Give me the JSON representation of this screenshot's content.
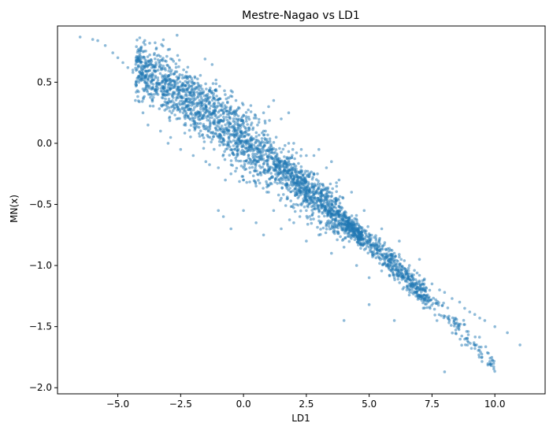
{
  "chart_data": {
    "type": "scatter",
    "title": "Mestre-Nagao vs LD1",
    "xlabel": "LD1",
    "ylabel": "MN(x)",
    "xlim": [
      -7.4,
      12.0
    ],
    "ylim": [
      -2.05,
      0.96
    ],
    "x_ticks": [
      -5.0,
      -2.5,
      0.0,
      2.5,
      5.0,
      7.5,
      10.0
    ],
    "x_tick_labels": [
      "−5.0",
      "−2.5",
      "0.0",
      "2.5",
      "5.0",
      "7.5",
      "10.0"
    ],
    "y_ticks": [
      0.5,
      0.0,
      -0.5,
      -1.0,
      -1.5,
      -2.0
    ],
    "y_tick_labels": [
      "0.5",
      "0.0",
      "−0.5",
      "−1.0",
      "−1.5",
      "−2.0"
    ],
    "grid": false,
    "marker_color": "#1f77b4",
    "marker_alpha": 0.5,
    "series": [
      {
        "points": [
          [
            -6.5,
            0.87
          ],
          [
            -6.0,
            0.85
          ],
          [
            -5.8,
            0.84
          ],
          [
            -5.5,
            0.8
          ],
          [
            -5.2,
            0.74
          ],
          [
            -5.0,
            0.7
          ],
          [
            -4.8,
            0.66
          ],
          [
            -4.6,
            0.62
          ],
          [
            -4.4,
            0.58
          ],
          [
            -4.2,
            0.54
          ],
          [
            -4.0,
            0.52
          ],
          [
            -3.8,
            0.48
          ],
          [
            -3.6,
            0.45
          ],
          [
            -3.4,
            0.4
          ],
          [
            -3.2,
            0.37
          ],
          [
            -3.0,
            0.33
          ],
          [
            -2.8,
            0.31
          ],
          [
            -2.6,
            0.28
          ],
          [
            -2.4,
            0.25
          ],
          [
            -2.2,
            0.22
          ],
          [
            -2.0,
            0.2
          ],
          [
            -1.8,
            0.16
          ],
          [
            -1.6,
            0.14
          ],
          [
            -1.4,
            0.1
          ],
          [
            -1.2,
            0.08
          ],
          [
            -1.0,
            0.05
          ],
          [
            -0.8,
            0.03
          ],
          [
            -0.6,
            0.0
          ],
          [
            -0.4,
            -0.02
          ],
          [
            -0.2,
            -0.05
          ],
          [
            0.0,
            -0.07
          ],
          [
            0.2,
            -0.1
          ],
          [
            0.4,
            -0.12
          ],
          [
            0.6,
            -0.15
          ],
          [
            0.8,
            -0.17
          ],
          [
            1.0,
            -0.2
          ],
          [
            1.2,
            -0.22
          ],
          [
            1.4,
            -0.25
          ],
          [
            1.6,
            -0.27
          ],
          [
            1.8,
            -0.3
          ],
          [
            2.0,
            -0.32
          ],
          [
            2.2,
            -0.35
          ],
          [
            2.4,
            -0.37
          ],
          [
            2.6,
            -0.4
          ],
          [
            2.8,
            -0.42
          ],
          [
            3.0,
            -0.45
          ],
          [
            3.2,
            -0.47
          ],
          [
            3.4,
            -0.5
          ],
          [
            3.6,
            -0.52
          ],
          [
            3.8,
            -0.55
          ],
          [
            4.0,
            -0.58
          ],
          [
            4.2,
            -0.61
          ],
          [
            4.4,
            -0.64
          ],
          [
            4.6,
            -0.68
          ],
          [
            4.8,
            -0.71
          ],
          [
            5.0,
            -0.74
          ],
          [
            5.2,
            -0.77
          ],
          [
            5.4,
            -0.8
          ],
          [
            5.6,
            -0.83
          ],
          [
            5.8,
            -0.86
          ],
          [
            6.0,
            -0.9
          ],
          [
            6.2,
            -0.93
          ],
          [
            6.4,
            -0.96
          ],
          [
            6.6,
            -1.0
          ],
          [
            6.8,
            -1.04
          ],
          [
            7.0,
            -1.08
          ],
          [
            7.2,
            -1.11
          ],
          [
            7.5,
            -1.15
          ],
          [
            7.8,
            -1.2
          ],
          [
            8.0,
            -1.22
          ],
          [
            8.3,
            -1.27
          ],
          [
            8.6,
            -1.3
          ],
          [
            8.8,
            -1.35
          ],
          [
            9.0,
            -1.38
          ],
          [
            9.2,
            -1.4
          ],
          [
            9.4,
            -1.43
          ],
          [
            9.6,
            -1.45
          ],
          [
            10.0,
            -1.5
          ],
          [
            10.5,
            -1.55
          ],
          [
            11.0,
            -1.65
          ],
          [
            -4.4,
            0.6
          ],
          [
            -4.3,
            0.35
          ],
          [
            -4.0,
            0.25
          ],
          [
            -3.8,
            0.15
          ],
          [
            -3.5,
            0.55
          ],
          [
            -3.3,
            0.1
          ],
          [
            -3.0,
            0.0
          ],
          [
            -2.9,
            0.5
          ],
          [
            -2.5,
            -0.05
          ],
          [
            -2.2,
            0.45
          ],
          [
            -2.0,
            -0.1
          ],
          [
            -1.8,
            0.38
          ],
          [
            -1.5,
            -0.15
          ],
          [
            -1.2,
            0.3
          ],
          [
            -1.0,
            -0.2
          ],
          [
            -0.8,
            0.25
          ],
          [
            -0.5,
            -0.25
          ],
          [
            -0.3,
            0.2
          ],
          [
            0.0,
            -0.3
          ],
          [
            0.3,
            0.15
          ],
          [
            0.5,
            -0.35
          ],
          [
            0.8,
            0.1
          ],
          [
            1.0,
            -0.4
          ],
          [
            1.3,
            0.05
          ],
          [
            1.5,
            -0.45
          ],
          [
            1.8,
            0.0
          ],
          [
            2.0,
            -0.5
          ],
          [
            2.3,
            -0.05
          ],
          [
            2.5,
            -0.55
          ],
          [
            2.8,
            -0.1
          ],
          [
            3.0,
            -0.6
          ],
          [
            3.3,
            -0.2
          ],
          [
            3.5,
            -0.65
          ],
          [
            3.8,
            -0.3
          ],
          [
            4.0,
            -0.7
          ],
          [
            4.3,
            -0.4
          ],
          [
            4.5,
            -0.75
          ],
          [
            4.8,
            -0.55
          ],
          [
            5.0,
            -0.85
          ],
          [
            5.5,
            -0.7
          ],
          [
            5.8,
            -0.95
          ],
          [
            6.2,
            -0.8
          ],
          [
            6.5,
            -1.05
          ],
          [
            7.0,
            -0.95
          ],
          [
            -1.0,
            -0.55
          ],
          [
            -0.8,
            -0.6
          ],
          [
            -0.5,
            -0.7
          ],
          [
            0.0,
            -0.55
          ],
          [
            0.5,
            -0.65
          ],
          [
            0.8,
            -0.75
          ],
          [
            1.2,
            -0.55
          ],
          [
            1.5,
            -0.7
          ],
          [
            2.0,
            -0.65
          ],
          [
            2.5,
            -0.8
          ],
          [
            3.0,
            -0.75
          ],
          [
            3.5,
            -0.9
          ],
          [
            4.0,
            -0.85
          ],
          [
            4.5,
            -1.0
          ],
          [
            5.0,
            -1.1
          ],
          [
            5.0,
            -1.32
          ],
          [
            5.3,
            -0.9
          ],
          [
            5.8,
            -1.0
          ],
          [
            6.0,
            -1.1
          ],
          [
            6.5,
            -1.2
          ],
          [
            7.0,
            -1.25
          ],
          [
            4.0,
            -1.45
          ],
          [
            6.0,
            -1.45
          ],
          [
            8.0,
            -1.87
          ],
          [
            0.0,
            -0.3
          ],
          [
            -0.5,
            0.3
          ],
          [
            -0.3,
            0.35
          ],
          [
            1.0,
            0.3
          ],
          [
            1.2,
            0.35
          ],
          [
            0.8,
            0.25
          ],
          [
            1.5,
            0.2
          ],
          [
            1.8,
            0.25
          ],
          [
            2.0,
            0.0
          ],
          [
            2.5,
            -0.1
          ],
          [
            3.0,
            -0.05
          ],
          [
            3.5,
            -0.15
          ]
        ]
      }
    ]
  }
}
